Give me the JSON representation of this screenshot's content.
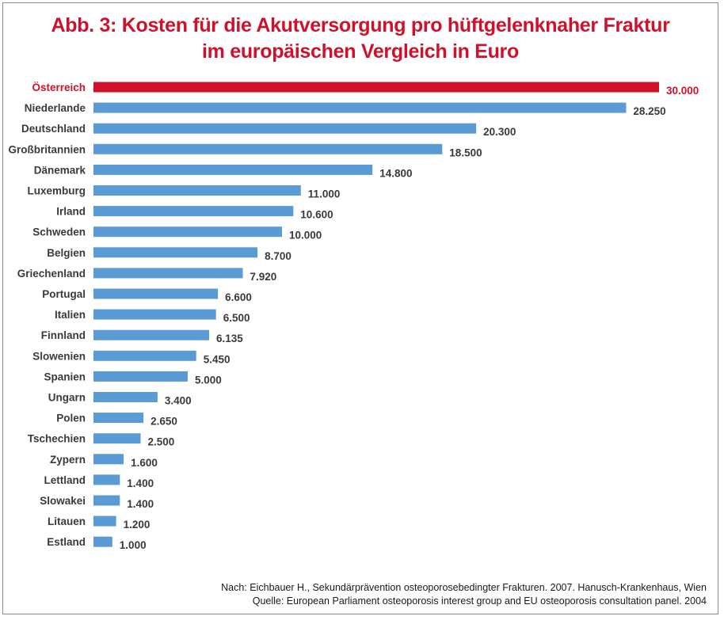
{
  "chart_data": {
    "type": "bar",
    "orientation": "horizontal",
    "title": "Abb. 3: Kosten für die Akutversorgung pro hüftgelenknaher Fraktur",
    "subtitle": "im europäischen Vergleich in Euro",
    "categories": [
      "Österreich",
      "Niederlande",
      "Deutschland",
      "Großbritannien",
      "Dänemark",
      "Luxemburg",
      "Irland",
      "Schweden",
      "Belgien",
      "Griechenland",
      "Portugal",
      "Italien",
      "Finnland",
      "Slowenien",
      "Spanien",
      "Ungarn",
      "Polen",
      "Tschechien",
      "Zypern",
      "Lettland",
      "Slowakei",
      "Litauen",
      "Estland"
    ],
    "values": [
      30000,
      28250,
      20300,
      18500,
      14800,
      11000,
      10600,
      10000,
      8700,
      7920,
      6600,
      6500,
      6135,
      5450,
      5000,
      3400,
      2650,
      2500,
      1600,
      1400,
      1400,
      1200,
      1000
    ],
    "value_labels": [
      "30.000",
      "28.250",
      "20.300",
      "18.500",
      "14.800",
      "11.000",
      "10.600",
      "10.000",
      "8.700",
      "7.920",
      "6.600",
      "6.500",
      "6.135",
      "5.450",
      "5.000",
      "3.400",
      "2.650",
      "2.500",
      "1.600",
      "1.400",
      "1.400",
      "1.200",
      "1.000"
    ],
    "highlight_index": 0,
    "colors": {
      "bar": "#5b9bd5",
      "highlight": "#d0112b",
      "text": "#3a3a3a"
    },
    "xlim": [
      0,
      30000
    ],
    "grid": false,
    "legend": "none"
  },
  "footer": {
    "line1": "Nach: Eichbauer H., Sekundärprävention osteoporosebedingter Frakturen. 2007. Hanusch-Krankenhaus, Wien",
    "line2": "Quelle: European Parliament osteoporosis interest group and EU osteoporosis consultation panel. 2004"
  }
}
